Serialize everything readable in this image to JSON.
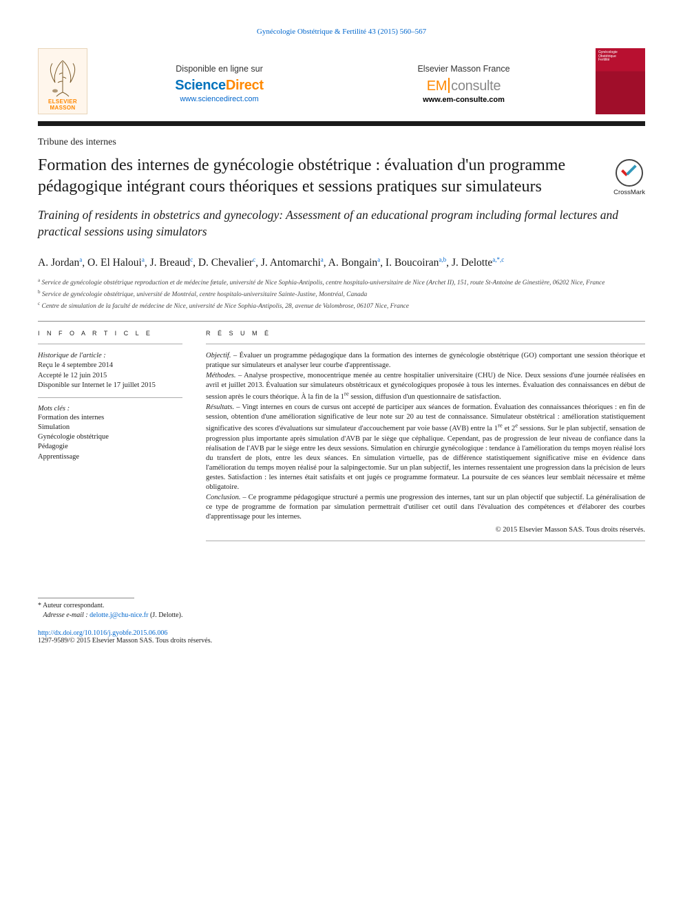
{
  "journal_ref": "Gynécologie Obstétrique & Fertilité 43 (2015) 560–567",
  "header": {
    "elsevier": {
      "line1": "ELSEVIER",
      "line2": "MASSON"
    },
    "sd": {
      "label": "Disponible en ligne sur",
      "brand_pre": "Science",
      "brand_post": "Direct",
      "url": "www.sciencedirect.com"
    },
    "em": {
      "label": "Elsevier Masson France",
      "brand_pre": "EM",
      "brand_post": "consulte",
      "url": "www.em-consulte.com"
    },
    "cover": {
      "t1": "Gynécologie",
      "t2": "Obstétrique",
      "t3": "Fertilité"
    }
  },
  "article_type": "Tribune des internes",
  "title_fr": "Formation des internes de gynécologie obstétrique : évaluation d'un programme pédagogique intégrant cours théoriques et sessions pratiques sur simulateurs",
  "title_en": "Training of residents in obstetrics and gynecology: Assessment of an educational program including formal lectures and practical sessions using simulators",
  "crossmark": "CrossMark",
  "authors": [
    {
      "name": "A. Jordan",
      "aff": "a"
    },
    {
      "name": "O. El Haloui",
      "aff": "a"
    },
    {
      "name": "J. Breaud",
      "aff": "c"
    },
    {
      "name": "D. Chevalier",
      "aff": "c"
    },
    {
      "name": "J. Antomarchi",
      "aff": "a"
    },
    {
      "name": "A. Bongain",
      "aff": "a"
    },
    {
      "name": "I. Boucoiran",
      "aff": "a,b"
    },
    {
      "name": "J. Delotte",
      "aff": "a,*,c"
    }
  ],
  "affiliations": {
    "a": "Service de gynécologie obstétrique reproduction et de médecine fœtale, université de Nice Sophia-Antipolis, centre hospitalo-universitaire de Nice (Archet II), 151, route St-Antoine de Ginestière, 06202 Nice, France",
    "b": "Service de gynécologie obstétrique, université de Montréal, centre hospitalo-universitaire Sainte-Justine, Montréal, Canada",
    "c": "Centre de simulation de la faculté de médecine de Nice, université de Nice Sophia-Antipolis, 28, avenue de Valombrose, 06107 Nice, France"
  },
  "info": {
    "head": "I N F O  A R T I C L E",
    "hist_label": "Historique de l'article :",
    "received": "Reçu le 4 septembre 2014",
    "accepted": "Accepté le 12 juin 2015",
    "online": "Disponible sur Internet le 17 juillet 2015",
    "kw_label": "Mots clés :",
    "keywords": [
      "Formation des internes",
      "Simulation",
      "Gynécologie obstétrique",
      "Pédagogie",
      "Apprentissage"
    ]
  },
  "abstract": {
    "head": "R É S U M É",
    "objectif_label": "Objectif. –",
    "objectif": "Évaluer un programme pédagogique dans la formation des internes de gynécologie obstétrique (GO) comportant une session théorique et pratique sur simulateurs et analyser leur courbe d'apprentissage.",
    "methodes_label": "Méthodes. –",
    "methodes": "Analyse prospective, monocentrique menée au centre hospitalier universitaire (CHU) de Nice. Deux sessions d'une journée réalisées en avril et juillet 2013. Évaluation sur simulateurs obstétricaux et gynécologiques proposée à tous les internes. Évaluation des connaissances en début de session après le cours théorique. À la fin de la 1re session, diffusion d'un questionnaire de satisfaction.",
    "resultats_label": "Résultats. –",
    "resultats": "Vingt internes en cours de cursus ont accepté de participer aux séances de formation. Évaluation des connaissances théoriques : en fin de session, obtention d'une amélioration significative de leur note sur 20 au test de connaissance. Simulateur obstétrical : amélioration statistiquement significative des scores d'évaluations sur simulateur d'accouchement par voie basse (AVB) entre la 1re et 2e sessions. Sur le plan subjectif, sensation de progression plus importante après simulation d'AVB par le siège que céphalique. Cependant, pas de progression de leur niveau de confiance dans la réalisation de l'AVB par le siège entre les deux sessions. Simulation en chirurgie gynécologique : tendance à l'amélioration du temps moyen réalisé lors du transfert de plots, entre les deux séances. En simulation virtuelle, pas de différence statistiquement significative mise en évidence dans l'amélioration du temps moyen réalisé pour la salpingectomie. Sur un plan subjectif, les internes ressentaient une progression dans la précision de leurs gestes. Satisfaction : les internes était satisfaits et ont jugés ce programme formateur. La poursuite de ces séances leur semblait nécessaire et même obligatoire.",
    "conclusion_label": "Conclusion. –",
    "conclusion": "Ce programme pédagogique structuré a permis une progression des internes, tant sur un plan objectif que subjectif. La généralisation de ce type de programme de formation par simulation permettrait d'utiliser cet outil dans l'évaluation des compétences et d'élaborer des courbes d'apprentissage pour les internes.",
    "copyright": "© 2015 Elsevier Masson SAS. Tous droits réservés."
  },
  "footnote": {
    "corr": "* Auteur correspondant.",
    "email_label": "Adresse e-mail :",
    "email": "delotte.j@chu-nice.fr",
    "email_who": "(J. Delotte)."
  },
  "doi": "http://dx.doi.org/10.1016/j.gyobfe.2015.06.006",
  "issn": "1297-9589/© 2015 Elsevier Masson SAS. Tous droits réservés.",
  "colors": {
    "link": "#0066cc",
    "orange": "#ff8800",
    "sd_orange": "#ff8800",
    "sd_blue": "#0072bc",
    "cover_red": "#b81030"
  }
}
